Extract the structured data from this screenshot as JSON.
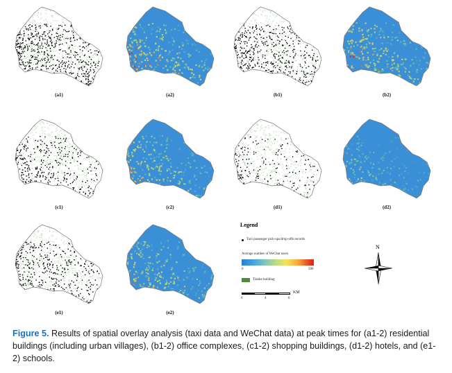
{
  "panels": [
    {
      "label": "(a1)",
      "kind": "dots",
      "intensity": 1.0
    },
    {
      "label": "(a2)",
      "kind": "heat",
      "intensity": 1.0
    },
    {
      "label": "(b1)",
      "kind": "dots",
      "intensity": 0.8
    },
    {
      "label": "(b2)",
      "kind": "heat",
      "intensity": 1.0
    },
    {
      "label": "(c1)",
      "kind": "dots",
      "intensity": 0.55
    },
    {
      "label": "(c2)",
      "kind": "heat",
      "intensity": 0.85
    },
    {
      "label": "(d1)",
      "kind": "dots",
      "intensity": 0.35
    },
    {
      "label": "(d2)",
      "kind": "heat",
      "intensity": 0.55
    },
    {
      "label": "(e1)",
      "kind": "dots",
      "intensity": 0.7
    },
    {
      "label": "(e2)",
      "kind": "heat",
      "intensity": 0.9
    }
  ],
  "legend": {
    "title": "Legend",
    "taxi_label": "Taxi passenger pick-ups/drop-offs records",
    "wechat_label": "Average number of WeChat users",
    "ramp_min": "0",
    "ramp_max": "500",
    "building_label": "Tianhe building",
    "scale_unit": "KM",
    "scale_ticks": [
      "0",
      "4",
      "8"
    ]
  },
  "north_label": "N",
  "caption": {
    "figure_label": "Figure 5.",
    "text": " Results of spatial overlay analysis (taxi data and WeChat data) at peak times for (a1-2) residential buildings (including urban villages), (b1-2) office complexes, (c1-2) shopping buildings, (d1-2) hotels, and (e1-2) schools."
  },
  "colors": {
    "heat_base": "#3a8fd6",
    "building_green": "#4f8b3f",
    "dot_black": "#000000",
    "caption_blue": "#1d6ebd"
  }
}
